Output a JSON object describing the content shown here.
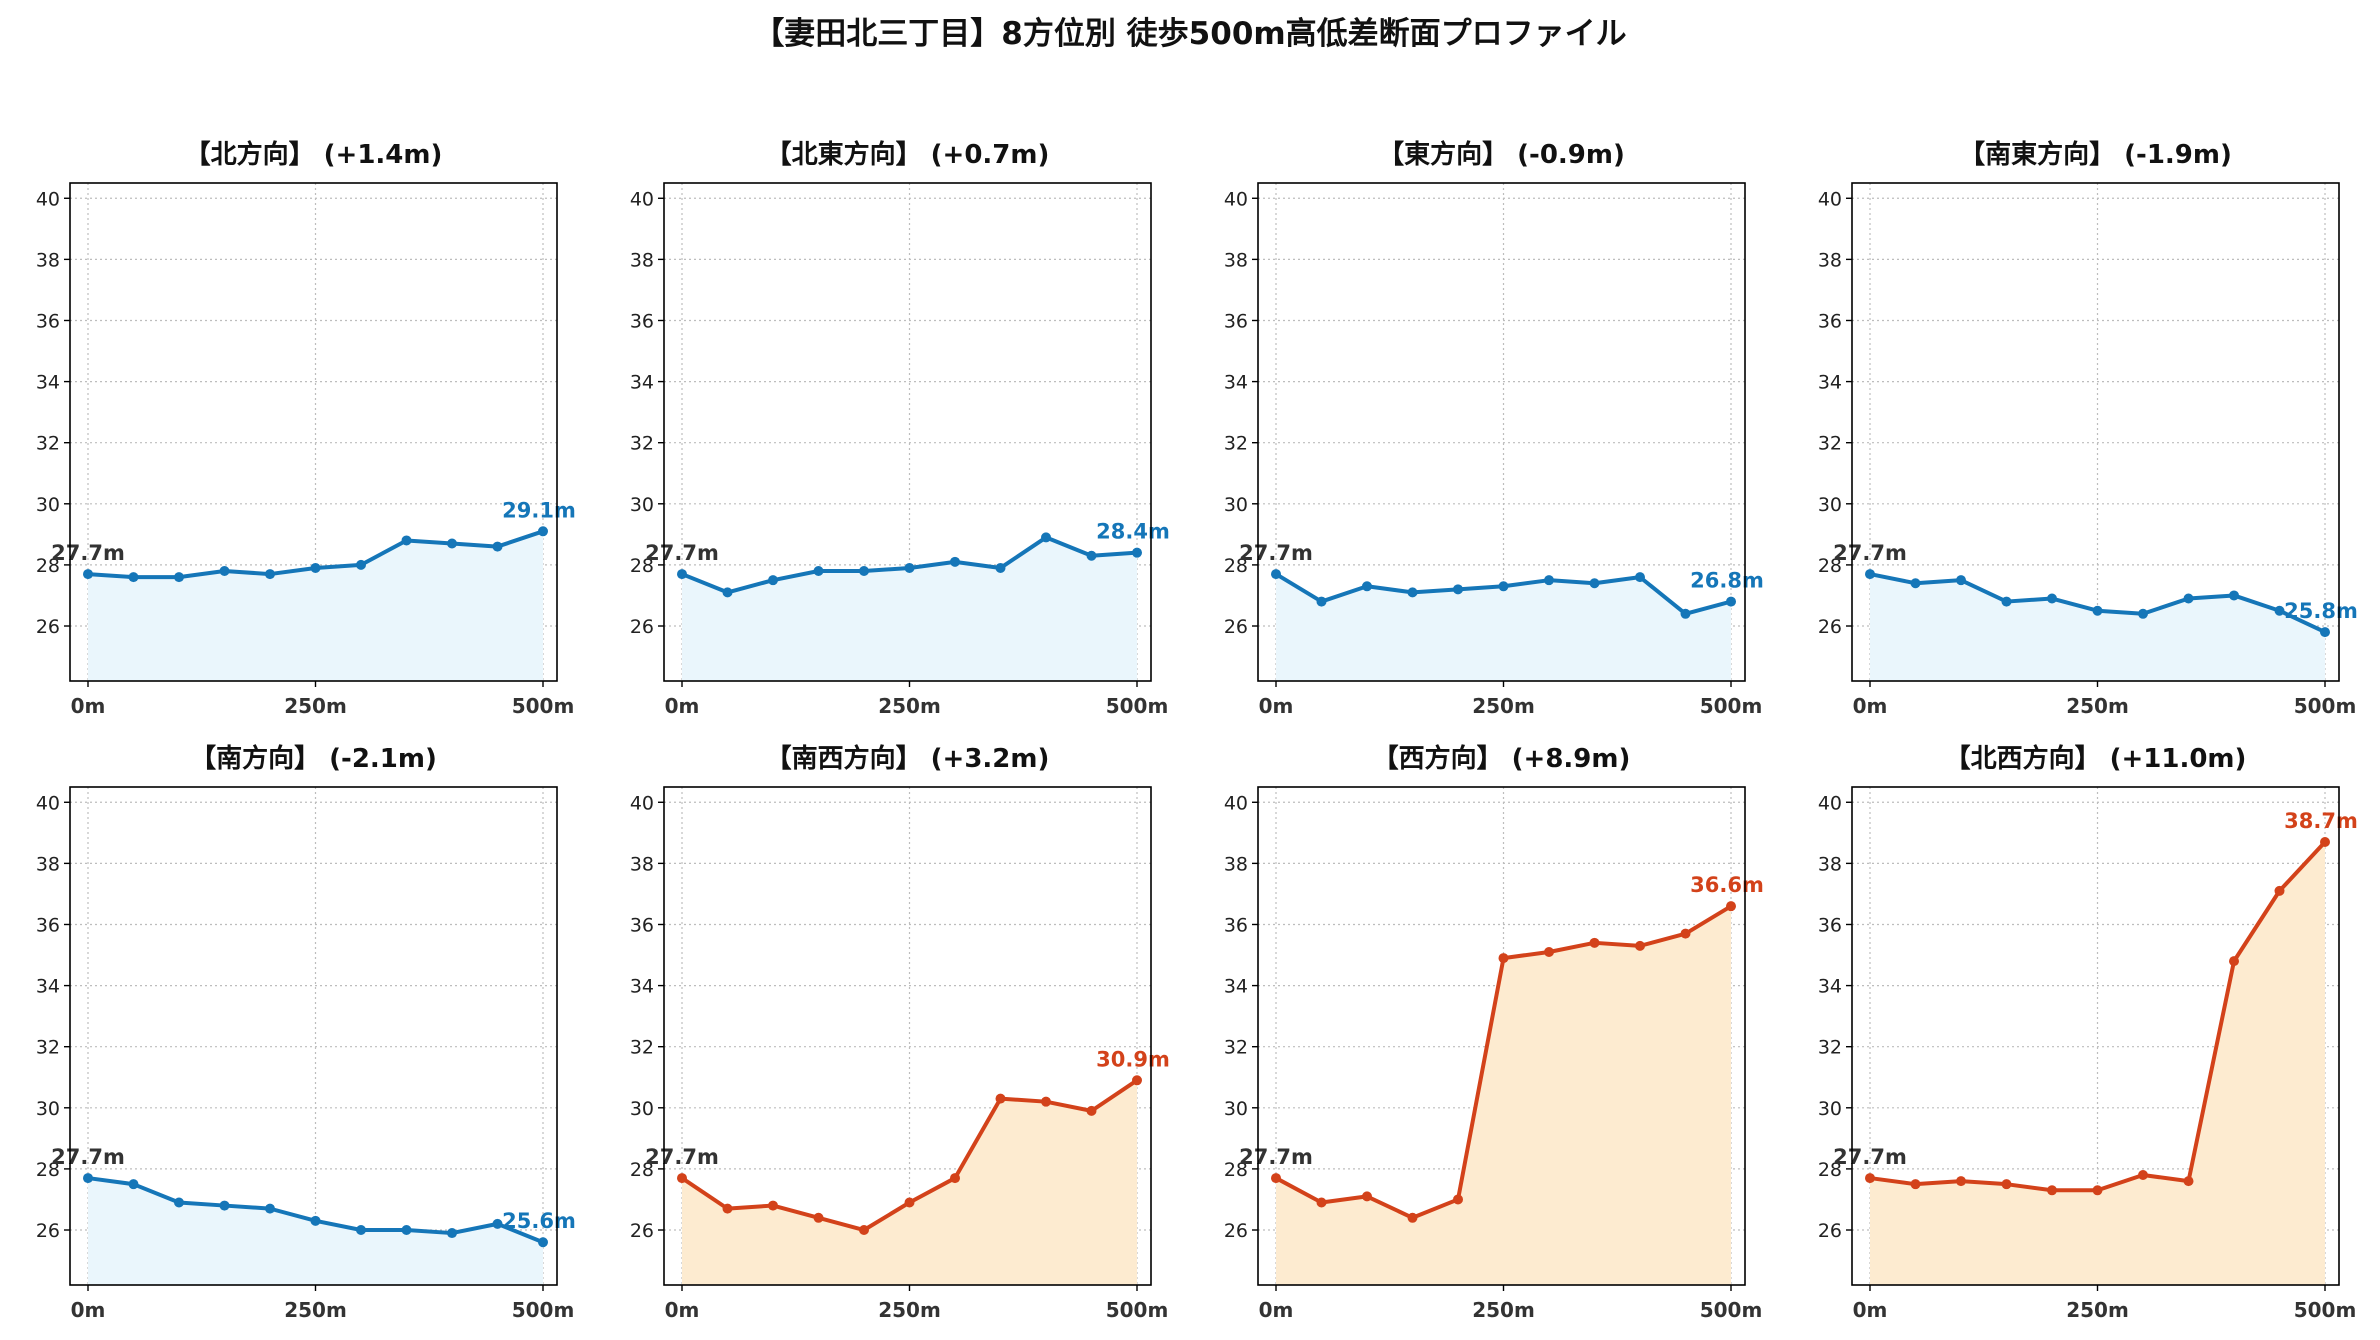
{
  "title": "【妻田北三丁目】8方位別 徒歩500m高低差断面プロファイル",
  "colors": {
    "down_line": "#1576b8",
    "down_fill": "#eaf6fc",
    "up_line": "#d3421a",
    "up_fill": "#fdebd0",
    "start_label": "#333333",
    "grid": "#bdbdbd"
  },
  "chart_data": [
    {
      "type": "area",
      "title": "【北方向】 (+1.4m)",
      "trend": "down",
      "x": [
        0,
        50,
        100,
        150,
        200,
        250,
        300,
        350,
        400,
        450,
        500
      ],
      "y": [
        27.7,
        27.6,
        27.6,
        27.8,
        27.7,
        27.9,
        28.0,
        28.8,
        28.7,
        28.6,
        29.1
      ],
      "start_label": "27.7m",
      "end_label": "29.1m",
      "xticks": [
        "0m",
        "250m",
        "500m"
      ],
      "ylim": [
        24.2,
        40.5
      ],
      "yticks": [
        26,
        28,
        30,
        32,
        34,
        36,
        38,
        40
      ],
      "grid": true
    },
    {
      "type": "area",
      "title": "【北東方向】 (+0.7m)",
      "trend": "down",
      "x": [
        0,
        50,
        100,
        150,
        200,
        250,
        300,
        350,
        400,
        450,
        500
      ],
      "y": [
        27.7,
        27.1,
        27.5,
        27.8,
        27.8,
        27.9,
        28.1,
        27.9,
        28.9,
        28.3,
        28.4
      ],
      "start_label": "27.7m",
      "end_label": "28.4m",
      "xticks": [
        "0m",
        "250m",
        "500m"
      ],
      "ylim": [
        24.2,
        40.5
      ],
      "yticks": [
        26,
        28,
        30,
        32,
        34,
        36,
        38,
        40
      ],
      "grid": true
    },
    {
      "type": "area",
      "title": "【東方向】 (-0.9m)",
      "trend": "down",
      "x": [
        0,
        50,
        100,
        150,
        200,
        250,
        300,
        350,
        400,
        450,
        500
      ],
      "y": [
        27.7,
        26.8,
        27.3,
        27.1,
        27.2,
        27.3,
        27.5,
        27.4,
        27.6,
        26.4,
        26.8
      ],
      "start_label": "27.7m",
      "end_label": "26.8m",
      "xticks": [
        "0m",
        "250m",
        "500m"
      ],
      "ylim": [
        24.2,
        40.5
      ],
      "yticks": [
        26,
        28,
        30,
        32,
        34,
        36,
        38,
        40
      ],
      "grid": true
    },
    {
      "type": "area",
      "title": "【南東方向】 (-1.9m)",
      "trend": "down",
      "x": [
        0,
        50,
        100,
        150,
        200,
        250,
        300,
        350,
        400,
        450,
        500
      ],
      "y": [
        27.7,
        27.4,
        27.5,
        26.8,
        26.9,
        26.5,
        26.4,
        26.9,
        27.0,
        26.5,
        25.8
      ],
      "start_label": "27.7m",
      "end_label": "25.8m",
      "xticks": [
        "0m",
        "250m",
        "500m"
      ],
      "ylim": [
        24.2,
        40.5
      ],
      "yticks": [
        26,
        28,
        30,
        32,
        34,
        36,
        38,
        40
      ],
      "grid": true
    },
    {
      "type": "area",
      "title": "【南方向】 (-2.1m)",
      "trend": "down",
      "x": [
        0,
        50,
        100,
        150,
        200,
        250,
        300,
        350,
        400,
        450,
        500
      ],
      "y": [
        27.7,
        27.5,
        26.9,
        26.8,
        26.7,
        26.3,
        26.0,
        26.0,
        25.9,
        26.2,
        25.6
      ],
      "start_label": "27.7m",
      "end_label": "25.6m",
      "xticks": [
        "0m",
        "250m",
        "500m"
      ],
      "ylim": [
        24.2,
        40.5
      ],
      "yticks": [
        26,
        28,
        30,
        32,
        34,
        36,
        38,
        40
      ],
      "grid": true
    },
    {
      "type": "area",
      "title": "【南西方向】 (+3.2m)",
      "trend": "up",
      "x": [
        0,
        50,
        100,
        150,
        200,
        250,
        300,
        350,
        400,
        450,
        500
      ],
      "y": [
        27.7,
        26.7,
        26.8,
        26.4,
        26.0,
        26.9,
        27.7,
        30.3,
        30.2,
        29.9,
        30.9
      ],
      "start_label": "27.7m",
      "end_label": "30.9m",
      "xticks": [
        "0m",
        "250m",
        "500m"
      ],
      "ylim": [
        24.2,
        40.5
      ],
      "yticks": [
        26,
        28,
        30,
        32,
        34,
        36,
        38,
        40
      ],
      "grid": true
    },
    {
      "type": "area",
      "title": "【西方向】 (+8.9m)",
      "trend": "up",
      "x": [
        0,
        50,
        100,
        150,
        200,
        250,
        300,
        350,
        400,
        450,
        500
      ],
      "y": [
        27.7,
        26.9,
        27.1,
        26.4,
        27.0,
        34.9,
        35.1,
        35.4,
        35.3,
        35.7,
        36.6
      ],
      "start_label": "27.7m",
      "end_label": "36.6m",
      "xticks": [
        "0m",
        "250m",
        "500m"
      ],
      "ylim": [
        24.2,
        40.5
      ],
      "yticks": [
        26,
        28,
        30,
        32,
        34,
        36,
        38,
        40
      ],
      "grid": true
    },
    {
      "type": "area",
      "title": "【北西方向】 (+11.0m)",
      "trend": "up",
      "x": [
        0,
        50,
        100,
        150,
        200,
        250,
        300,
        350,
        400,
        450,
        500
      ],
      "y": [
        27.7,
        27.5,
        27.6,
        27.5,
        27.3,
        27.3,
        27.8,
        27.6,
        34.8,
        37.1,
        38.7
      ],
      "start_label": "27.7m",
      "end_label": "38.7m",
      "xticks": [
        "0m",
        "250m",
        "500m"
      ],
      "ylim": [
        24.2,
        40.5
      ],
      "yticks": [
        26,
        28,
        30,
        32,
        34,
        36,
        38,
        40
      ],
      "grid": true
    }
  ]
}
